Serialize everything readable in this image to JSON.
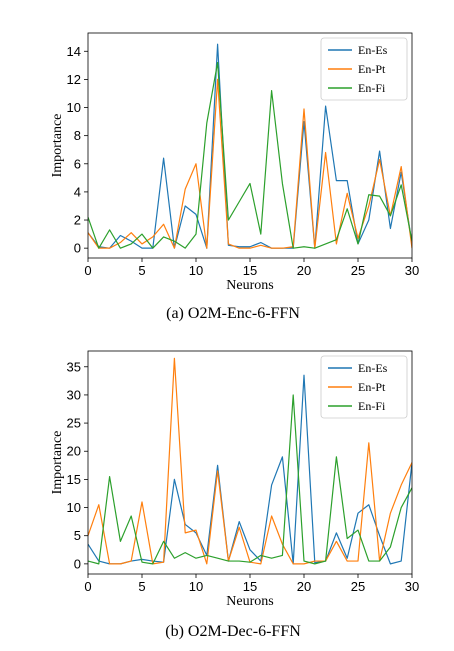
{
  "colors": {
    "En-Es": "#1f77b4",
    "En-Pt": "#ff7f0e",
    "En-Fi": "#2ca02c"
  },
  "chart_data": [
    {
      "type": "line",
      "caption": "(a)  O2M-Enc-6-FFN",
      "xlabel": "Neurons",
      "ylabel": "Importance",
      "xlim": [
        0,
        30
      ],
      "ylim": [
        -0.7,
        15.3
      ],
      "xticks": [
        0,
        5,
        10,
        15,
        20,
        25,
        30
      ],
      "yticks": [
        0,
        2,
        4,
        6,
        8,
        10,
        12,
        14
      ],
      "legend_position": "top-right",
      "x": [
        0,
        1,
        2,
        3,
        4,
        5,
        6,
        7,
        8,
        9,
        10,
        11,
        12,
        13,
        14,
        15,
        16,
        17,
        18,
        19,
        20,
        21,
        22,
        23,
        24,
        25,
        26,
        27,
        28,
        29,
        30
      ],
      "series": [
        {
          "name": "En-Es",
          "values": [
            1.1,
            0.1,
            0.0,
            0.9,
            0.5,
            0.0,
            0.0,
            6.4,
            0.0,
            3.0,
            2.4,
            0.0,
            14.5,
            0.2,
            0.1,
            0.1,
            0.4,
            0.0,
            0.0,
            0.0,
            9.0,
            0.0,
            10.1,
            4.8,
            4.8,
            0.3,
            2.0,
            6.9,
            1.4,
            5.4,
            0.3
          ]
        },
        {
          "name": "En-Pt",
          "values": [
            1.1,
            0.0,
            0.0,
            0.4,
            1.1,
            0.3,
            0.8,
            1.7,
            0.0,
            4.2,
            6.0,
            0.0,
            12.0,
            0.3,
            0.0,
            0.0,
            0.2,
            0.0,
            0.0,
            0.1,
            9.9,
            0.0,
            6.8,
            0.3,
            3.9,
            0.7,
            3.0,
            6.3,
            2.3,
            5.8,
            0.0
          ]
        },
        {
          "name": "En-Fi",
          "values": [
            2.2,
            0.0,
            1.3,
            0.0,
            0.3,
            1.0,
            0.0,
            0.8,
            0.5,
            0.0,
            1.0,
            8.9,
            13.2,
            2.0,
            3.3,
            4.6,
            1.0,
            11.2,
            4.6,
            0.0,
            0.1,
            0.0,
            0.3,
            0.6,
            2.8,
            0.3,
            3.8,
            3.7,
            2.3,
            4.5,
            0.5
          ]
        }
      ]
    },
    {
      "type": "line",
      "caption": "(b)  O2M-Dec-6-FFN",
      "xlabel": "Neurons",
      "ylabel": "Importance",
      "xlim": [
        0,
        30
      ],
      "ylim": [
        -1.8,
        37.8
      ],
      "xticks": [
        0,
        5,
        10,
        15,
        20,
        25,
        30
      ],
      "yticks": [
        0,
        5,
        10,
        15,
        20,
        25,
        30,
        35
      ],
      "legend_position": "top-right",
      "x": [
        0,
        1,
        2,
        3,
        4,
        5,
        6,
        7,
        8,
        9,
        10,
        11,
        12,
        13,
        14,
        15,
        16,
        17,
        18,
        19,
        20,
        21,
        22,
        23,
        24,
        25,
        26,
        27,
        28,
        29,
        30
      ],
      "series": [
        {
          "name": "En-Es",
          "values": [
            3.5,
            0.5,
            0.0,
            0.0,
            0.5,
            0.8,
            0.5,
            0.3,
            15.0,
            7.0,
            5.5,
            1.5,
            17.5,
            0.5,
            7.5,
            2.5,
            0.5,
            14.0,
            19.0,
            0.0,
            33.5,
            0.2,
            0.5,
            5.5,
            1.0,
            9.0,
            10.5,
            5.0,
            0.0,
            0.5,
            18.0
          ]
        },
        {
          "name": "En-Pt",
          "values": [
            5.0,
            10.5,
            0.0,
            0.0,
            0.5,
            11.0,
            0.0,
            0.3,
            36.5,
            5.5,
            6.0,
            0.0,
            16.5,
            0.5,
            6.5,
            0.3,
            0.0,
            8.5,
            3.5,
            0.0,
            0.0,
            0.5,
            0.5,
            4.0,
            0.5,
            0.5,
            21.5,
            0.5,
            9.0,
            14.0,
            18.0
          ]
        },
        {
          "name": "En-Fi",
          "values": [
            0.5,
            0.0,
            15.5,
            4.0,
            8.5,
            0.3,
            0.0,
            4.0,
            1.0,
            2.0,
            1.0,
            1.5,
            1.0,
            0.5,
            0.5,
            0.3,
            1.5,
            1.0,
            1.5,
            30.0,
            0.5,
            0.0,
            0.5,
            19.0,
            4.5,
            6.0,
            0.5,
            0.5,
            3.0,
            10.0,
            13.5
          ]
        }
      ]
    }
  ]
}
